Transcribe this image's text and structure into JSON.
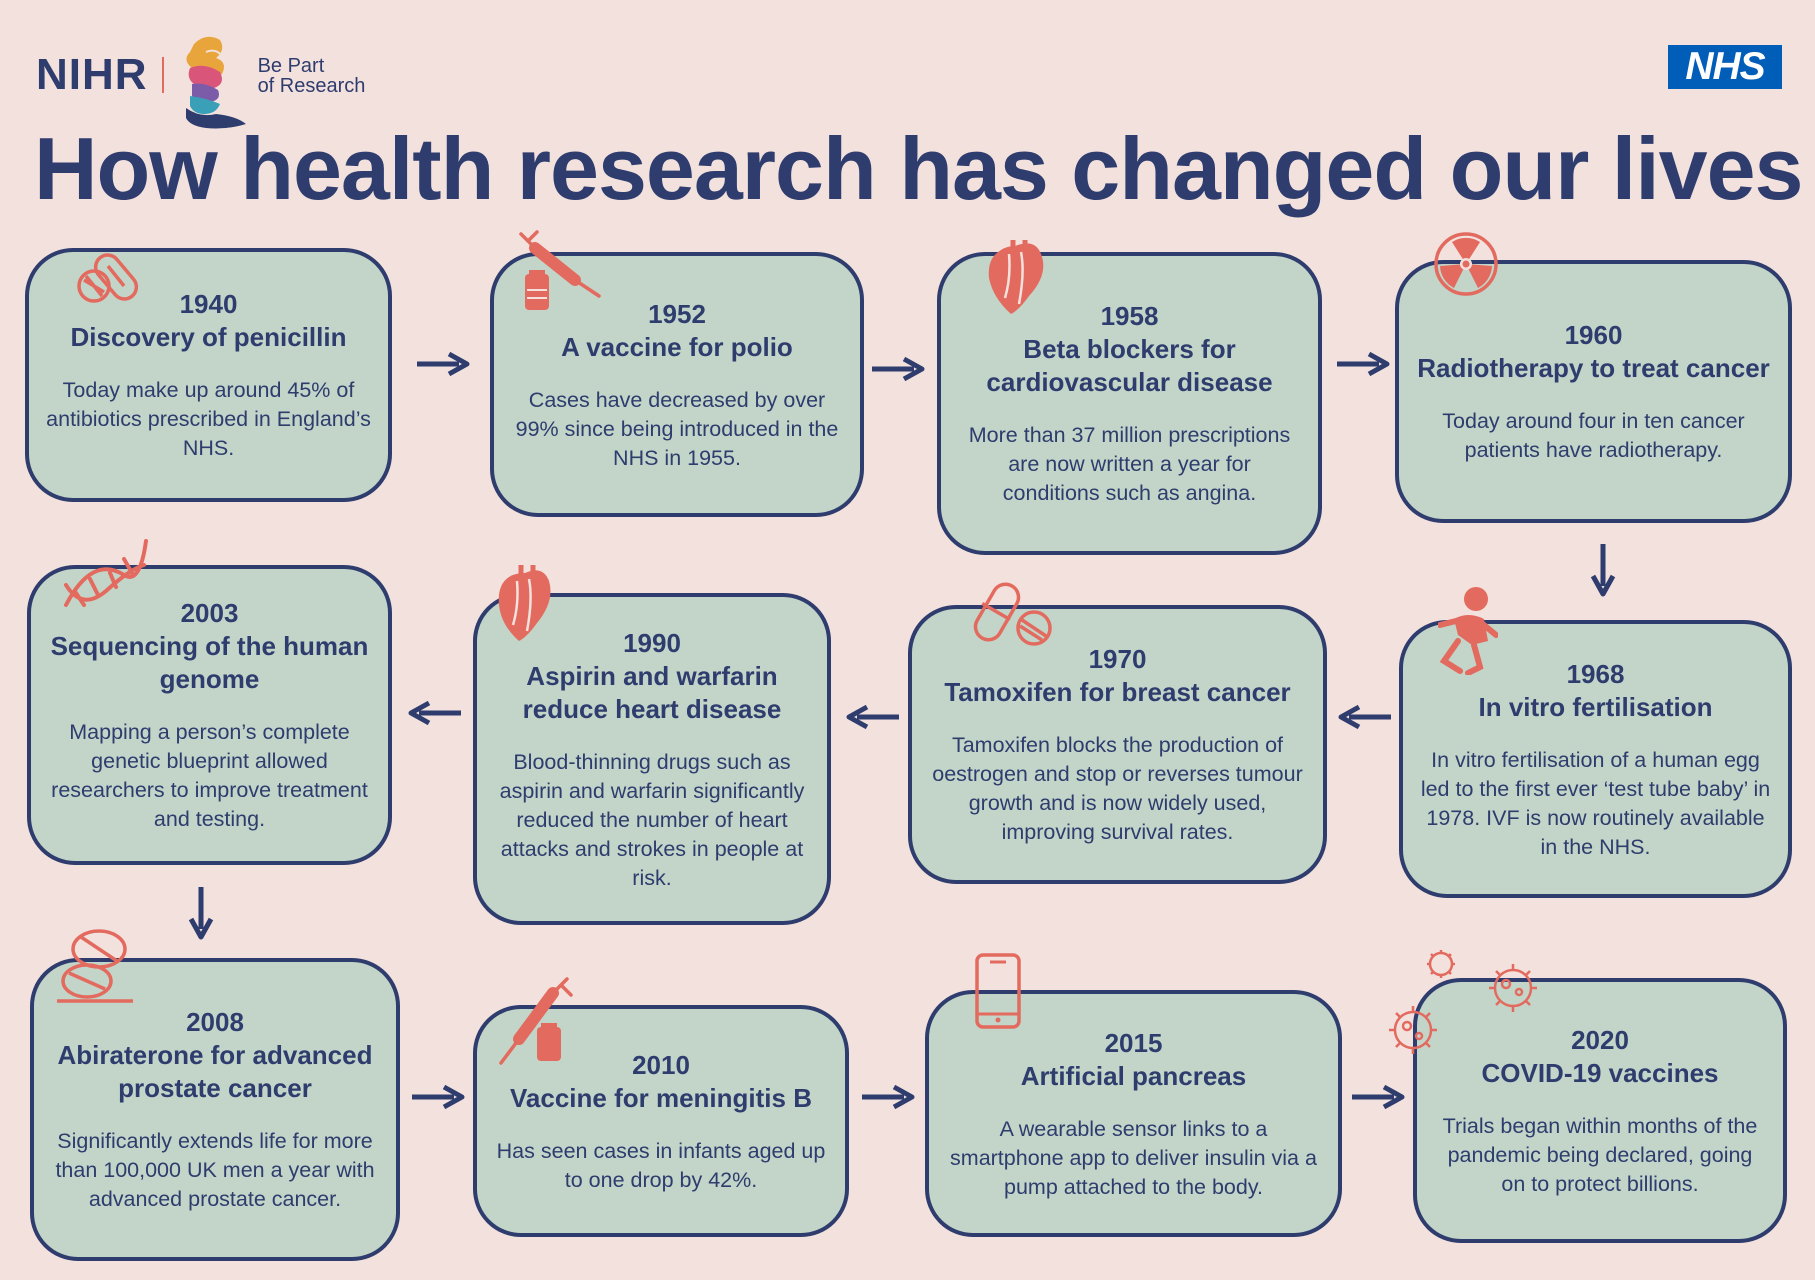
{
  "header": {
    "org_name": "NIHR",
    "tagline_line1": "Be Part",
    "tagline_line2": "of Research",
    "nhs_logo": "NHS",
    "title": "How health research has changed our lives"
  },
  "colors": {
    "background": "#f3e1dd",
    "card_fill": "#c3d5c8",
    "navy": "#2e3c6e",
    "icon_coral": "#e36a5e",
    "nhs_blue": "#005eb8"
  },
  "milestones": [
    {
      "year": "1940",
      "title": "Discovery of penicillin",
      "body": "Today make up around 45% of antibiotics prescribed  in England’s NHS.",
      "icon": "pills-icon"
    },
    {
      "year": "1952",
      "title": "A vaccine for polio",
      "body": "Cases have decreased by over 99% since being introduced in the NHS in 1955.",
      "icon": "syringe-vial-icon"
    },
    {
      "year": "1958",
      "title": "Beta blockers for cardiovascular disease",
      "body": "More than 37 million prescriptions are now written a year for conditions such as angina.",
      "icon": "heart-icon"
    },
    {
      "year": "1960",
      "title": "Radiotherapy to treat cancer",
      "body": "Today around four in ten cancer patients have radiotherapy.",
      "icon": "radiation-icon"
    },
    {
      "year": "1968",
      "title": "In vitro fertilisation",
      "body": "In vitro fertilisation of a human egg led to the first ever ‘test tube baby’ in 1978. IVF is now routinely available in the NHS.",
      "icon": "baby-icon"
    },
    {
      "year": "1970",
      "title": "Tamoxifen for breast cancer",
      "body": "Tamoxifen blocks the production of oestrogen and stop or reverses tumour growth and is now widely used, improving survival rates.",
      "icon": "capsule-icon"
    },
    {
      "year": "1990",
      "title": "Aspirin and warfarin reduce heart disease",
      "body": "Blood-thinning drugs such as aspirin and warfarin significantly reduced the number of heart attacks and strokes in people at risk.",
      "icon": "heart-icon"
    },
    {
      "year": "2003",
      "title": "Sequencing of the human genome",
      "body": "Mapping a person’s complete genetic blueprint allowed researchers to improve treatment and testing.",
      "icon": "dna-icon"
    },
    {
      "year": "2008",
      "title": "Abiraterone for advanced prostate cancer",
      "body": "Significantly extends life for more than 100,000 UK men a year with advanced prostate cancer.",
      "icon": "tablets-icon"
    },
    {
      "year": "2010",
      "title": "Vaccine for meningitis B",
      "body": "Has seen cases in infants aged up to one drop by 42%.",
      "icon": "syringe-vial-icon"
    },
    {
      "year": "2015",
      "title": "Artificial pancreas",
      "body": "A wearable sensor links to a smartphone app to deliver insulin via a pump attached to the body.",
      "icon": "smartphone-icon"
    },
    {
      "year": "2020",
      "title": "COVID-19 vaccines",
      "body": "Trials began within months of the pandemic being declared, going on to protect billions.",
      "icon": "virus-icon"
    }
  ]
}
